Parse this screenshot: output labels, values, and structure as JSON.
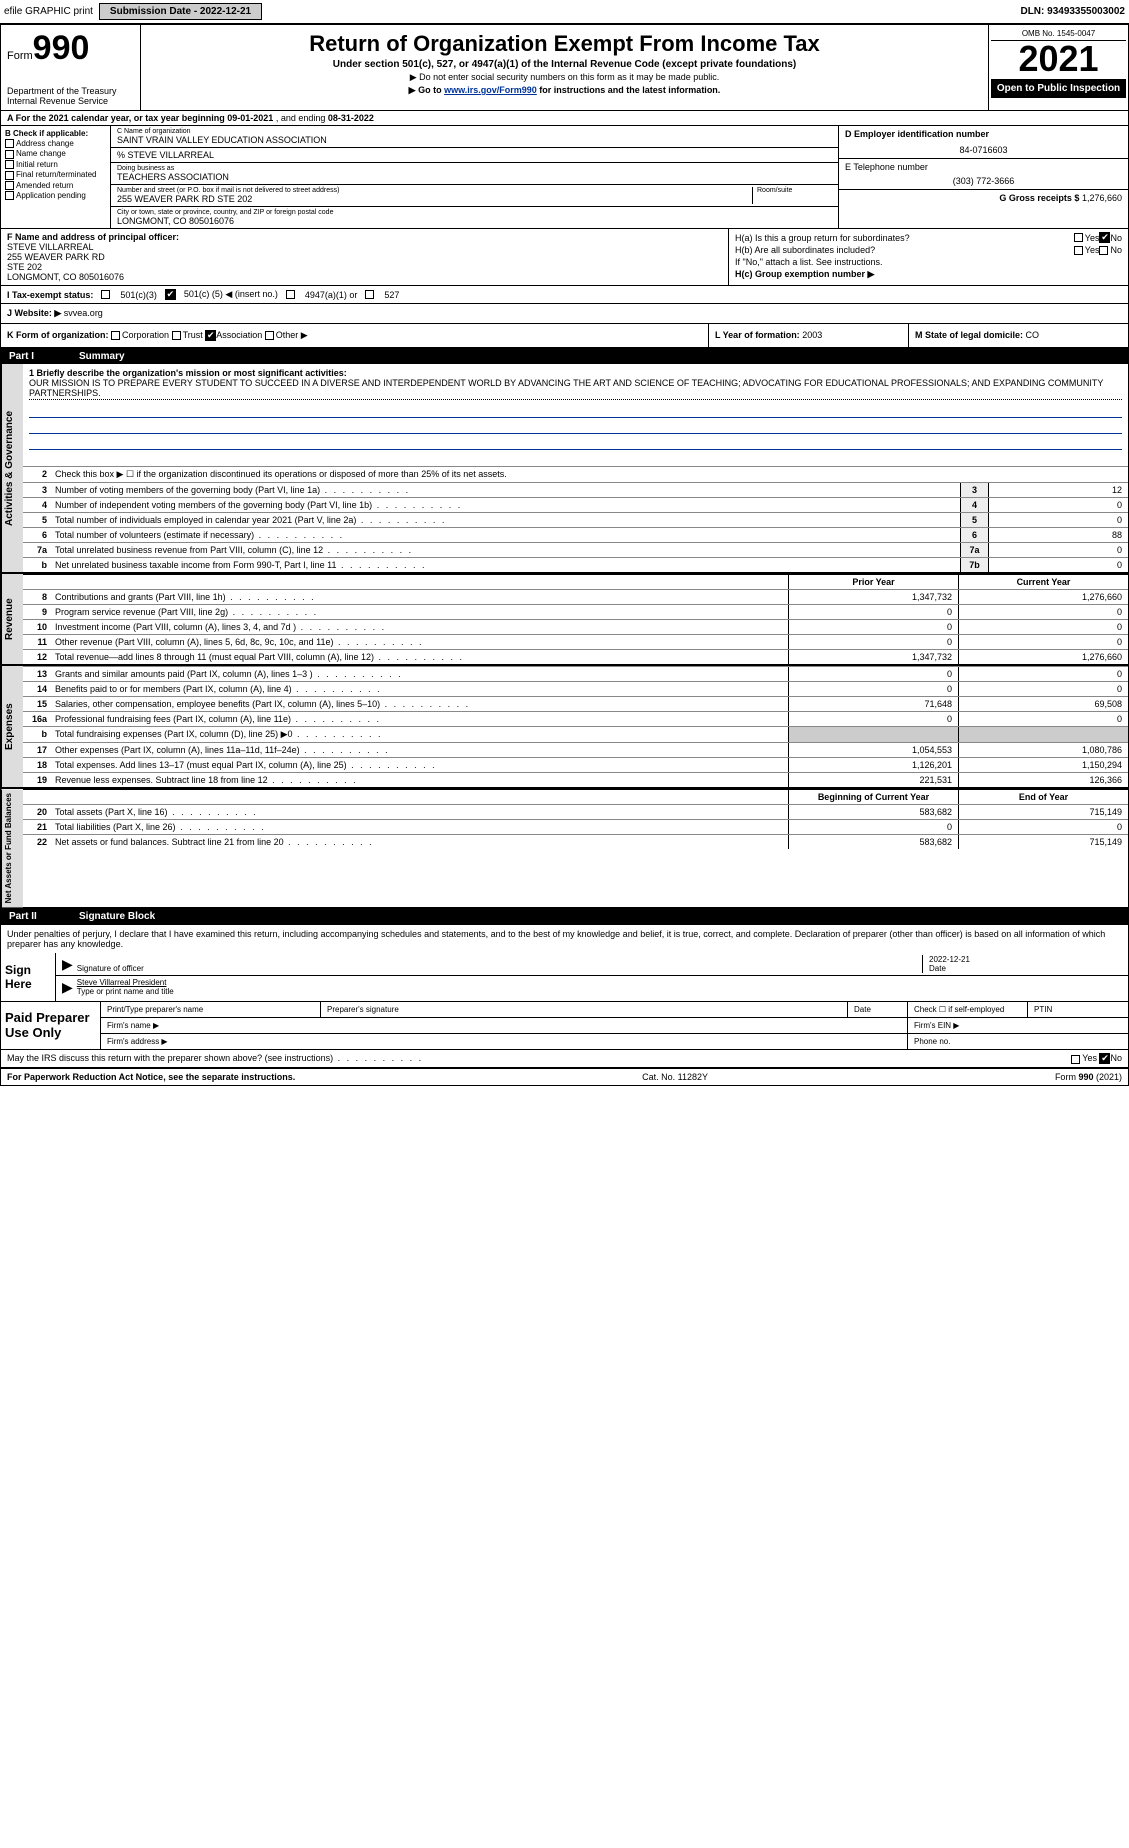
{
  "topbar": {
    "efile": "efile GRAPHIC print",
    "submission_label": "Submission Date - 2022-12-21",
    "dln_label": "DLN: 93493355003002"
  },
  "header": {
    "form_prefix": "Form",
    "form_number": "990",
    "dept": "Department of the Treasury",
    "irs": "Internal Revenue Service",
    "title": "Return of Organization Exempt From Income Tax",
    "subtitle": "Under section 501(c), 527, or 4947(a)(1) of the Internal Revenue Code (except private foundations)",
    "note1": "▶ Do not enter social security numbers on this form as it may be made public.",
    "note2_prefix": "▶ Go to ",
    "note2_link": "www.irs.gov/Form990",
    "note2_suffix": " for instructions and the latest information.",
    "omb": "OMB No. 1545-0047",
    "year": "2021",
    "open_public": "Open to Public Inspection"
  },
  "row_a": {
    "text_prefix": "A For the 2021 calendar year, or tax year beginning ",
    "begin": "09-01-2021",
    "mid": " , and ending ",
    "end": "08-31-2022"
  },
  "col_b": {
    "heading": "B Check if applicable:",
    "opts": [
      "Address change",
      "Name change",
      "Initial return",
      "Final return/terminated",
      "Amended return",
      "Application pending"
    ]
  },
  "col_c": {
    "name_label": "C Name of organization",
    "name": "SAINT VRAIN VALLEY EDUCATION ASSOCIATION",
    "care_of": "% STEVE VILLARREAL",
    "dba_label": "Doing business as",
    "dba": "TEACHERS ASSOCIATION",
    "street_label": "Number and street (or P.O. box if mail is not delivered to street address)",
    "room_label": "Room/suite",
    "street": "255 WEAVER PARK RD STE 202",
    "city_label": "City or town, state or province, country, and ZIP or foreign postal code",
    "city": "LONGMONT, CO  805016076"
  },
  "col_de": {
    "d_label": "D Employer identification number",
    "ein": "84-0716603",
    "e_label": "E Telephone number",
    "phone": "(303) 772-3666",
    "g_label": "G Gross receipts $",
    "g_val": "1,276,660"
  },
  "row_f": {
    "label": "F  Name and address of principal officer:",
    "name": "STEVE VILLARREAL",
    "addr1": "255 WEAVER PARK RD",
    "addr2": "STE 202",
    "addr3": "LONGMONT, CO  805016076"
  },
  "row_h": {
    "ha_label": "H(a)  Is this a group return for subordinates?",
    "hb_label": "H(b)  Are all subordinates included?",
    "hb_note": "If \"No,\" attach a list. See instructions.",
    "hc_label": "H(c)  Group exemption number ▶",
    "yes": "Yes",
    "no": "No"
  },
  "row_i": {
    "label": "I  Tax-exempt status:",
    "opt1": "501(c)(3)",
    "opt2_pre": "501(c) (",
    "opt2_num": "5",
    "opt2_post": ") ◀ (insert no.)",
    "opt3": "4947(a)(1) or",
    "opt4": "527"
  },
  "row_j": {
    "label": "J  Website: ▶",
    "val": "svvea.org"
  },
  "row_k": {
    "label": "K Form of organization:",
    "opts": [
      "Corporation",
      "Trust",
      "Association",
      "Other ▶"
    ],
    "checked_idx": 2,
    "l_label": "L Year of formation:",
    "l_val": "2003",
    "m_label": "M State of legal domicile:",
    "m_val": "CO"
  },
  "part1": {
    "num": "Part I",
    "title": "Summary"
  },
  "mission": {
    "label": "1  Briefly describe the organization's mission or most significant activities:",
    "text": "OUR MISSION IS TO PREPARE EVERY STUDENT TO SUCCEED IN A DIVERSE AND INTERDEPENDENT WORLD BY ADVANCING THE ART AND SCIENCE OF TEACHING; ADVOCATING FOR EDUCATIONAL PROFESSIONALS; AND EXPANDING COMMUNITY PARTNERSHIPS."
  },
  "gov_lines": {
    "l2": "Check this box ▶ ☐  if the organization discontinued its operations or disposed of more than 25% of its net assets.",
    "l3": {
      "d": "Number of voting members of the governing body (Part VI, line 1a)",
      "v": "12"
    },
    "l4": {
      "d": "Number of independent voting members of the governing body (Part VI, line 1b)",
      "v": "0"
    },
    "l5": {
      "d": "Total number of individuals employed in calendar year 2021 (Part V, line 2a)",
      "v": "0"
    },
    "l6": {
      "d": "Total number of volunteers (estimate if necessary)",
      "v": "88"
    },
    "l7a": {
      "d": "Total unrelated business revenue from Part VIII, column (C), line 12",
      "v": "0"
    },
    "l7b": {
      "d": "Net unrelated business taxable income from Form 990-T, Part I, line 11",
      "v": "0"
    }
  },
  "cols": {
    "prior": "Prior Year",
    "current": "Current Year",
    "boy": "Beginning of Current Year",
    "eoy": "End of Year"
  },
  "revenue": [
    {
      "n": "8",
      "d": "Contributions and grants (Part VIII, line 1h)",
      "p": "1,347,732",
      "c": "1,276,660"
    },
    {
      "n": "9",
      "d": "Program service revenue (Part VIII, line 2g)",
      "p": "0",
      "c": "0"
    },
    {
      "n": "10",
      "d": "Investment income (Part VIII, column (A), lines 3, 4, and 7d )",
      "p": "0",
      "c": "0"
    },
    {
      "n": "11",
      "d": "Other revenue (Part VIII, column (A), lines 5, 6d, 8c, 9c, 10c, and 11e)",
      "p": "0",
      "c": "0"
    },
    {
      "n": "12",
      "d": "Total revenue—add lines 8 through 11 (must equal Part VIII, column (A), line 12)",
      "p": "1,347,732",
      "c": "1,276,660"
    }
  ],
  "expenses": [
    {
      "n": "13",
      "d": "Grants and similar amounts paid (Part IX, column (A), lines 1–3 )",
      "p": "0",
      "c": "0"
    },
    {
      "n": "14",
      "d": "Benefits paid to or for members (Part IX, column (A), line 4)",
      "p": "0",
      "c": "0"
    },
    {
      "n": "15",
      "d": "Salaries, other compensation, employee benefits (Part IX, column (A), lines 5–10)",
      "p": "71,648",
      "c": "69,508"
    },
    {
      "n": "16a",
      "d": "Professional fundraising fees (Part IX, column (A), line 11e)",
      "p": "0",
      "c": "0"
    },
    {
      "n": "b",
      "d": "Total fundraising expenses (Part IX, column (D), line 25) ▶0",
      "p": "",
      "c": "",
      "grey": true
    },
    {
      "n": "17",
      "d": "Other expenses (Part IX, column (A), lines 11a–11d, 11f–24e)",
      "p": "1,054,553",
      "c": "1,080,786"
    },
    {
      "n": "18",
      "d": "Total expenses. Add lines 13–17 (must equal Part IX, column (A), line 25)",
      "p": "1,126,201",
      "c": "1,150,294"
    },
    {
      "n": "19",
      "d": "Revenue less expenses. Subtract line 18 from line 12",
      "p": "221,531",
      "c": "126,366"
    }
  ],
  "netassets": [
    {
      "n": "20",
      "d": "Total assets (Part X, line 16)",
      "p": "583,682",
      "c": "715,149"
    },
    {
      "n": "21",
      "d": "Total liabilities (Part X, line 26)",
      "p": "0",
      "c": "0"
    },
    {
      "n": "22",
      "d": "Net assets or fund balances. Subtract line 21 from line 20",
      "p": "583,682",
      "c": "715,149"
    }
  ],
  "sides": {
    "gov": "Activities & Governance",
    "rev": "Revenue",
    "exp": "Expenses",
    "net": "Net Assets or Fund Balances"
  },
  "part2": {
    "num": "Part II",
    "title": "Signature Block"
  },
  "sig_decl": "Under penalties of perjury, I declare that I have examined this return, including accompanying schedules and statements, and to the best of my knowledge and belief, it is true, correct, and complete. Declaration of preparer (other than officer) is based on all information of which preparer has any knowledge.",
  "sign": {
    "here": "Sign Here",
    "sig_officer": "Signature of officer",
    "date": "Date",
    "date_val": "2022-12-21",
    "name_title": "Steve Villarreal  President",
    "type_name": "Type or print name and title"
  },
  "prep": {
    "label": "Paid Preparer Use Only",
    "c1": "Print/Type preparer's name",
    "c2": "Preparer's signature",
    "c3": "Date",
    "c4": "Check ☐ if self-employed",
    "c5": "PTIN",
    "firm_name": "Firm's name  ▶",
    "firm_ein": "Firm's EIN ▶",
    "firm_addr": "Firm's address ▶",
    "phone": "Phone no."
  },
  "bottom": {
    "discuss": "May the IRS discuss this return with the preparer shown above? (see instructions)",
    "yes": "Yes",
    "no": "No",
    "pra": "For Paperwork Reduction Act Notice, see the separate instructions.",
    "cat": "Cat. No. 11282Y",
    "form": "Form 990 (2021)"
  }
}
